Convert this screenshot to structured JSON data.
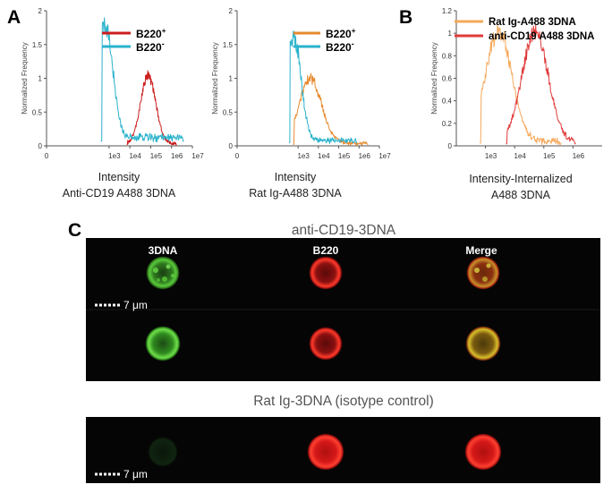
{
  "panels": {
    "A": "A",
    "B": "B",
    "C": "C"
  },
  "chart_data": [
    {
      "type": "line",
      "panel": "A-left",
      "xlabel": "Intensity",
      "xlabel_sub": "Anti-CD19 A488 3DNA",
      "ylabel": "Normalized Frequency",
      "x_scale": "log",
      "xlim": [
        1,
        10000000
      ],
      "ylim": [
        0,
        2
      ],
      "x_ticks": [
        "0",
        "1e3",
        "1e4",
        "1e5",
        "1e6",
        "1e7"
      ],
      "y_ticks": [
        "0",
        "0.5",
        "1",
        "1.5",
        "2"
      ],
      "series": [
        {
          "name": "B220+",
          "sup": "+",
          "base": "B220",
          "color": "#cc1e1e",
          "peak_log": 4.88,
          "peak": 1.02,
          "width": 0.36,
          "floor": 0.03,
          "start_log": 3.85,
          "end_log": 6.25
        },
        {
          "name": "B220-",
          "sup": "-",
          "base": "B220",
          "color": "#2ab3cc",
          "peak_log": 2.82,
          "peak": 1.68,
          "width": 0.36,
          "floor": 0.12,
          "start_log": 2.6,
          "end_log": 6.6
        }
      ]
    },
    {
      "type": "line",
      "panel": "A-right",
      "xlabel": "Intensity",
      "xlabel_sub": "Rat Ig-A488 3DNA",
      "ylabel": "Normalized Frequency",
      "x_scale": "log",
      "xlim": [
        1,
        10000000
      ],
      "ylim": [
        0,
        2
      ],
      "x_ticks": [
        "0",
        "1e3",
        "1e4",
        "1e5",
        "1e6",
        "1e7"
      ],
      "y_ticks": [
        "0",
        "0.5",
        "1",
        "1.5",
        "2"
      ],
      "series": [
        {
          "name": "B220+",
          "sup": "+",
          "base": "B220",
          "color": "#e68a2e",
          "peak_log": 3.6,
          "peak": 0.95,
          "width": 0.55,
          "floor": 0.04,
          "start_log": 2.75,
          "end_log": 6.45
        },
        {
          "name": "B220-",
          "sup": "-",
          "base": "B220",
          "color": "#2ab3cc",
          "peak_log": 2.78,
          "peak": 1.55,
          "width": 0.36,
          "floor": 0.08,
          "start_log": 2.55,
          "end_log": 5.9
        }
      ]
    },
    {
      "type": "line",
      "panel": "B",
      "xlabel": "Intensity-Internalized",
      "xlabel_sub": "A488 3DNA",
      "ylabel": "Normalized Frequency",
      "x_scale": "log",
      "xlim": [
        100,
        10000000
      ],
      "ylim": [
        0,
        1.2
      ],
      "x_ticks": [
        "1e3",
        "1e4",
        "1e5",
        "1e6"
      ],
      "y_ticks": [
        "0",
        "0.2",
        "0.4",
        "0.6",
        "0.8",
        "1",
        "1.2"
      ],
      "series": [
        {
          "name": "Rat Ig-A488 3DNA",
          "color": "#f5a85a",
          "peak_log": 3.45,
          "peak": 0.98,
          "width": 0.45,
          "floor": 0.04,
          "start_log": 2.8,
          "end_log": 5.6
        },
        {
          "name": "anti-CD19 A488 3DNA",
          "color": "#e03a3a",
          "peak_log": 4.7,
          "peak": 0.98,
          "width": 0.45,
          "floor": 0.03,
          "start_log": 3.7,
          "end_log": 6.1
        }
      ]
    }
  ],
  "imaging": {
    "top_title": "anti-CD19-3DNA",
    "bottom_title": "Rat Ig-3DNA (isotype control)",
    "channels": [
      "3DNA",
      "B220",
      "Merge"
    ],
    "scale_bar": "7 μm"
  }
}
